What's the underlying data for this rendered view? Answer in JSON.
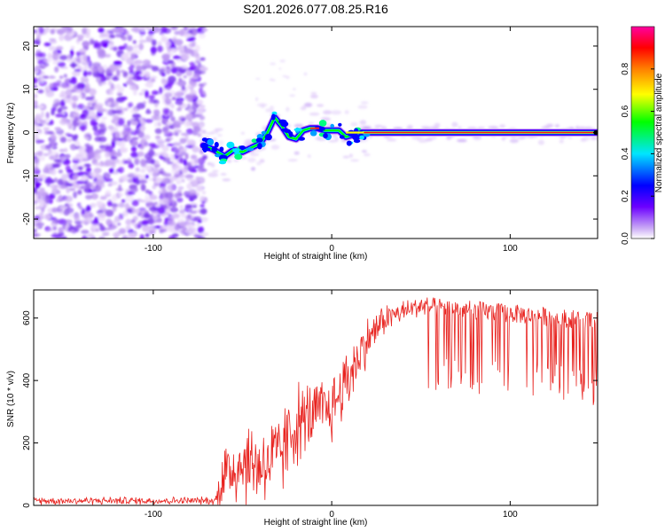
{
  "title": "S201.2026.077.08.25.R16",
  "chart_data": [
    {
      "type": "heatmap",
      "name": "spectrogram",
      "xlabel": "Height of straight line (km)",
      "ylabel": "Frequency (Hz)",
      "xlim": [
        -167,
        149
      ],
      "ylim": [
        -24.5,
        24.5
      ],
      "xticks": [
        -100,
        0,
        100
      ],
      "xtick_labels": [
        "-100",
        "0",
        "100"
      ],
      "yticks": [
        20,
        10,
        0,
        -10,
        -20
      ],
      "ytick_labels": [
        "20",
        "10",
        "0",
        "-10",
        "-20"
      ],
      "noise_region_x": [
        -167,
        -72
      ],
      "tone_track": {
        "x": [
          -72,
          -66,
          -60,
          -55,
          -50,
          -45,
          -40,
          -36,
          -32,
          -28,
          -24,
          -20,
          -16,
          -12,
          -8,
          -4,
          0,
          4,
          8,
          12,
          16,
          20,
          149
        ],
        "y": [
          -3,
          -4,
          -5.5,
          -4,
          -4.5,
          -3.5,
          -2.5,
          0,
          3.5,
          1.5,
          -1,
          -1.5,
          0.5,
          1,
          1,
          0.5,
          0.5,
          0.5,
          -1,
          -0.5,
          0,
          0,
          0
        ]
      },
      "colorbar": {
        "label": "Normalized spectral amplitude",
        "range": [
          0,
          1
        ],
        "ticks": [
          0.0,
          0.2,
          0.4,
          0.6,
          0.8
        ],
        "tick_labels": [
          "0.0",
          "0.2",
          "0.4",
          "0.6",
          "0.8"
        ]
      }
    },
    {
      "type": "line",
      "name": "snr",
      "xlabel": "Height of straight line (km)",
      "ylabel": "SNR (10 * v/v)",
      "xlim": [
        -167,
        149
      ],
      "ylim": [
        0,
        690
      ],
      "xticks": [
        -100,
        0,
        100
      ],
      "xtick_labels": [
        "-100",
        "0",
        "100"
      ],
      "yticks": [
        0,
        200,
        400,
        600
      ],
      "ytick_labels": [
        "0",
        "200",
        "400",
        "600"
      ],
      "color": "#e8231f",
      "envelope": {
        "x": [
          -167,
          -65,
          -62,
          -50,
          -40,
          -30,
          -20,
          -10,
          0,
          10,
          20,
          30,
          40,
          50,
          149
        ],
        "mean": [
          15,
          15,
          90,
          140,
          130,
          150,
          260,
          290,
          310,
          420,
          530,
          600,
          620,
          640,
          590
        ],
        "spread": [
          10,
          10,
          100,
          110,
          110,
          120,
          110,
          90,
          90,
          90,
          60,
          40,
          30,
          30,
          30
        ]
      }
    }
  ]
}
